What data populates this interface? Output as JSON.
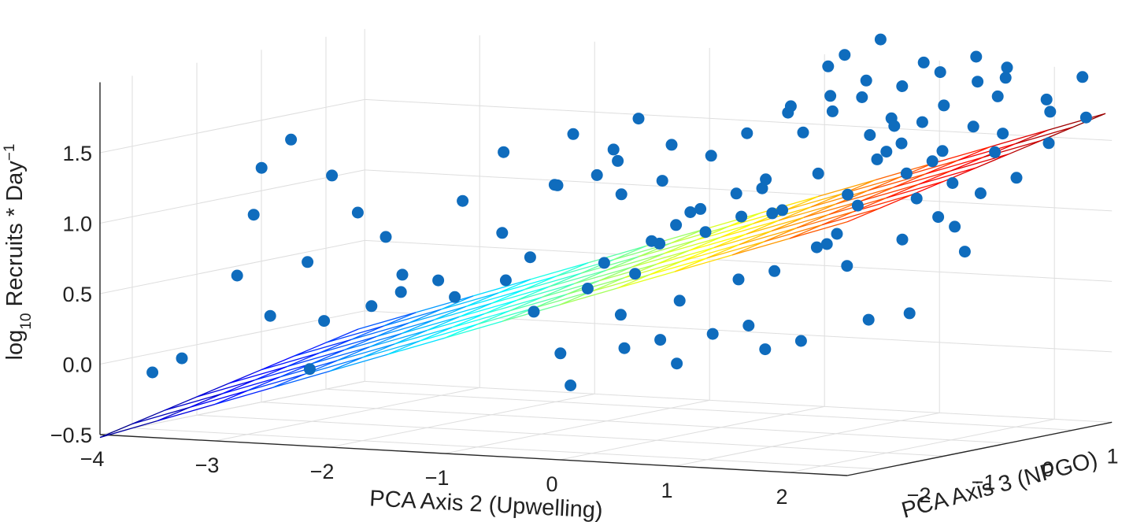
{
  "chart_data": {
    "type": "scatter",
    "subtype": "3d-scatter-with-fitted-plane",
    "title": "",
    "xlabel": "PCA Axis 2 (Upwelling)",
    "ylabel": "PCA Axis 3 (NPGO)",
    "zlabel": {
      "base": "log",
      "sub": "10",
      "rest": " Recruits * Day",
      "sup": "−1"
    },
    "xlim": [
      -4,
      2.5
    ],
    "ylim": [
      -2.5,
      1.6
    ],
    "zlim": [
      -0.5,
      2.0
    ],
    "x_ticks": [
      "−4",
      "−3",
      "−2",
      "−1",
      "0",
      "1",
      "2"
    ],
    "y_ticks": [
      "−2",
      "−1",
      "0",
      "1"
    ],
    "z_ticks": [
      "−0.5",
      "0.0",
      "0.5",
      "1.0",
      "1.5"
    ],
    "grid": true,
    "point_color": "#0f6cbd",
    "surface_colormap": "jet",
    "plane": {
      "intercept": 0.85,
      "slope_x": 0.28,
      "slope_y": 0.1,
      "x_range": [
        -4,
        2.5
      ],
      "y_range": [
        -2.5,
        1.5
      ],
      "divisions_x": 13,
      "divisions_y": 8
    },
    "points": [
      [
        -3.6,
        -2.4,
        -0.05
      ],
      [
        -3.4,
        -2.3,
        0.05
      ],
      [
        -3.0,
        -1.9,
        1.05
      ],
      [
        -3.1,
        -1.6,
        1.35
      ],
      [
        -2.9,
        -1.5,
        1.55
      ],
      [
        -2.6,
        -1.4,
        1.3
      ],
      [
        -2.7,
        -1.6,
        0.7
      ],
      [
        -2.8,
        -2.0,
        0.35
      ],
      [
        -2.4,
        -2.1,
        0.0
      ],
      [
        -2.5,
        -1.7,
        0.3
      ],
      [
        -2.2,
        -1.5,
        0.4
      ],
      [
        -2.0,
        -1.4,
        0.5
      ],
      [
        -2.1,
        -1.2,
        0.6
      ],
      [
        -1.9,
        -1.0,
        0.55
      ],
      [
        -1.7,
        -1.1,
        0.45
      ],
      [
        -1.4,
        -0.9,
        0.9
      ],
      [
        -1.2,
        -1.2,
        0.6
      ],
      [
        -1.1,
        -1.0,
        0.75
      ],
      [
        -1.5,
        -0.7,
        1.45
      ],
      [
        -1.0,
        -0.8,
        1.25
      ],
      [
        -0.8,
        -0.5,
        1.3
      ],
      [
        -0.6,
        -0.6,
        1.5
      ],
      [
        -0.9,
        -1.3,
        0.4
      ],
      [
        -0.6,
        -1.0,
        0.55
      ],
      [
        -0.4,
        -1.1,
        0.75
      ],
      [
        -0.3,
        -0.8,
        0.65
      ],
      [
        -0.2,
        -0.6,
        0.85
      ],
      [
        -0.1,
        -0.9,
        0.9
      ],
      [
        0.0,
        -0.7,
        1.0
      ],
      [
        0.1,
        -0.5,
        1.1
      ],
      [
        0.2,
        -0.6,
        0.95
      ],
      [
        0.3,
        -0.3,
        1.2
      ],
      [
        0.4,
        -0.4,
        1.05
      ],
      [
        0.5,
        -0.2,
        1.3
      ],
      [
        -0.5,
        -1.6,
        0.15
      ],
      [
        -0.3,
        -1.8,
        -0.05
      ],
      [
        0.0,
        -1.5,
        0.2
      ],
      [
        0.2,
        -1.3,
        0.25
      ],
      [
        0.4,
        -1.4,
        0.1
      ],
      [
        0.6,
        -1.2,
        0.3
      ],
      [
        0.8,
        -1.0,
        0.35
      ],
      [
        1.0,
        -1.1,
        0.2
      ],
      [
        1.2,
        -0.9,
        0.25
      ],
      [
        0.7,
        -0.3,
        1.1
      ],
      [
        0.9,
        -0.1,
        1.35
      ],
      [
        1.1,
        0.0,
        1.2
      ],
      [
        1.3,
        0.1,
        1.45
      ],
      [
        0.6,
        0.2,
        1.6
      ],
      [
        0.8,
        0.3,
        1.75
      ],
      [
        1.0,
        0.4,
        1.85
      ],
      [
        1.2,
        0.5,
        1.7
      ],
      [
        1.4,
        0.3,
        1.55
      ],
      [
        1.6,
        0.6,
        1.8
      ],
      [
        1.5,
        0.2,
        1.35
      ],
      [
        1.7,
        0.4,
        1.5
      ],
      [
        1.8,
        0.7,
        1.65
      ],
      [
        1.9,
        0.9,
        1.85
      ],
      [
        2.0,
        0.8,
        1.6
      ],
      [
        1.4,
        0.9,
        2.0
      ],
      [
        1.2,
        1.0,
        2.05
      ],
      [
        1.6,
        1.1,
        2.1
      ],
      [
        1.8,
        1.2,
        1.95
      ],
      [
        0.9,
        0.7,
        1.55
      ],
      [
        1.1,
        0.6,
        1.45
      ],
      [
        1.3,
        0.8,
        1.65
      ],
      [
        1.5,
        0.6,
        1.4
      ],
      [
        1.7,
        0.0,
        1.2
      ],
      [
        1.9,
        0.2,
        1.3
      ],
      [
        2.1,
        0.5,
        1.5
      ],
      [
        2.2,
        0.1,
        1.25
      ],
      [
        2.0,
        -0.2,
        1.1
      ],
      [
        1.8,
        -0.4,
        0.95
      ],
      [
        2.3,
        1.0,
        1.75
      ],
      [
        2.4,
        0.8,
        1.55
      ],
      [
        1.0,
        -0.3,
        0.85
      ],
      [
        0.8,
        -0.6,
        0.7
      ],
      [
        1.2,
        -0.5,
        0.9
      ],
      [
        1.4,
        -0.7,
        1.0
      ],
      [
        1.6,
        -0.9,
        0.8
      ],
      [
        1.9,
        -1.1,
        0.45
      ],
      [
        2.2,
        -1.0,
        0.5
      ],
      [
        2.4,
        -0.5,
        0.9
      ],
      [
        0.3,
        0.5,
        1.7
      ],
      [
        0.5,
        0.8,
        1.8
      ],
      [
        0.7,
        1.0,
        1.9
      ],
      [
        0.4,
        1.2,
        2.05
      ],
      [
        0.6,
        1.4,
        2.15
      ],
      [
        0.2,
        1.3,
        1.95
      ],
      [
        -0.2,
        0.2,
        1.4
      ],
      [
        0.0,
        0.4,
        1.55
      ],
      [
        -0.4,
        -0.2,
        1.25
      ],
      [
        -0.7,
        -0.3,
        1.15
      ],
      [
        -0.9,
        0.0,
        1.35
      ],
      [
        -1.2,
        -0.4,
        1.2
      ],
      [
        -1.8,
        -0.8,
        1.1
      ],
      [
        -2.3,
        -1.1,
        0.85
      ],
      [
        -2.6,
        -1.0,
        1.0
      ],
      [
        -3.2,
        -1.8,
        0.6
      ],
      [
        0.1,
        0.9,
        1.7
      ],
      [
        0.3,
        0.1,
        1.2
      ],
      [
        0.5,
        -0.1,
        1.05
      ],
      [
        1.5,
        1.3,
        1.9
      ],
      [
        1.7,
        1.4,
        2.0
      ],
      [
        2.1,
        1.3,
        1.8
      ],
      [
        2.3,
        1.5,
        1.95
      ],
      [
        2.5,
        1.2,
        1.7
      ],
      [
        2.4,
        0.3,
        1.35
      ],
      [
        2.2,
        -0.3,
        1.05
      ],
      [
        1.0,
        0.9,
        1.6
      ],
      [
        0.9,
        1.2,
        1.85
      ],
      [
        -0.1,
        -0.3,
        1.05
      ],
      [
        -0.6,
        0.3,
        1.45
      ],
      [
        -1.0,
        0.5,
        1.6
      ],
      [
        -1.4,
        0.2,
        1.5
      ],
      [
        0.6,
        -0.8,
        0.65
      ],
      [
        0.2,
        -1.0,
        0.5
      ],
      [
        -0.2,
        -1.2,
        0.4
      ],
      [
        1.3,
        -0.2,
        1.15
      ]
    ]
  }
}
